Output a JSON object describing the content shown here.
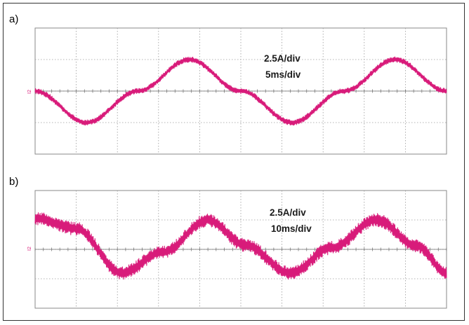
{
  "figure": {
    "panels": [
      {
        "label": "a)",
        "scale": "2.5A/div",
        "timebase": "5ms/div",
        "channel": "I2"
      },
      {
        "label": "b)",
        "scale": "2.5A/div",
        "timebase": "10ms/div",
        "channel": "I2"
      }
    ],
    "trace_color": "#d81b7a"
  },
  "chart_data": [
    {
      "type": "line",
      "title": "a)",
      "annotations": [
        "2.5A/div",
        "5ms/div"
      ],
      "x_unit": "div",
      "y_unit": "div",
      "xlim": [
        0,
        10
      ],
      "ylim": [
        -4,
        4
      ],
      "grid": true,
      "series": [
        {
          "x": [
            0,
            1.25,
            2.5,
            3.75,
            5,
            6.25,
            7.5,
            8.75,
            10
          ],
          "y": [
            0,
            -2.0,
            0,
            2.0,
            0,
            -2.0,
            0,
            2.0,
            0
          ],
          "ripple_pp": 0.35
        }
      ]
    },
    {
      "type": "line",
      "title": "b)",
      "annotations": [
        "2.5A/div",
        "10ms/div"
      ],
      "x_unit": "div",
      "y_unit": "div",
      "xlim": [
        0,
        10
      ],
      "ylim": [
        -4,
        4
      ],
      "grid": true,
      "series": [
        {
          "x": [
            0,
            1.0,
            2.1,
            3.1,
            4.2,
            5.1,
            6.2,
            7.2,
            8.3,
            9.3,
            10
          ],
          "y": [
            2.1,
            1.4,
            -1.6,
            -0.2,
            2.0,
            0.3,
            -1.6,
            0.1,
            2.0,
            0.2,
            -1.6
          ],
          "ripple_pp": 0.9
        }
      ]
    }
  ]
}
